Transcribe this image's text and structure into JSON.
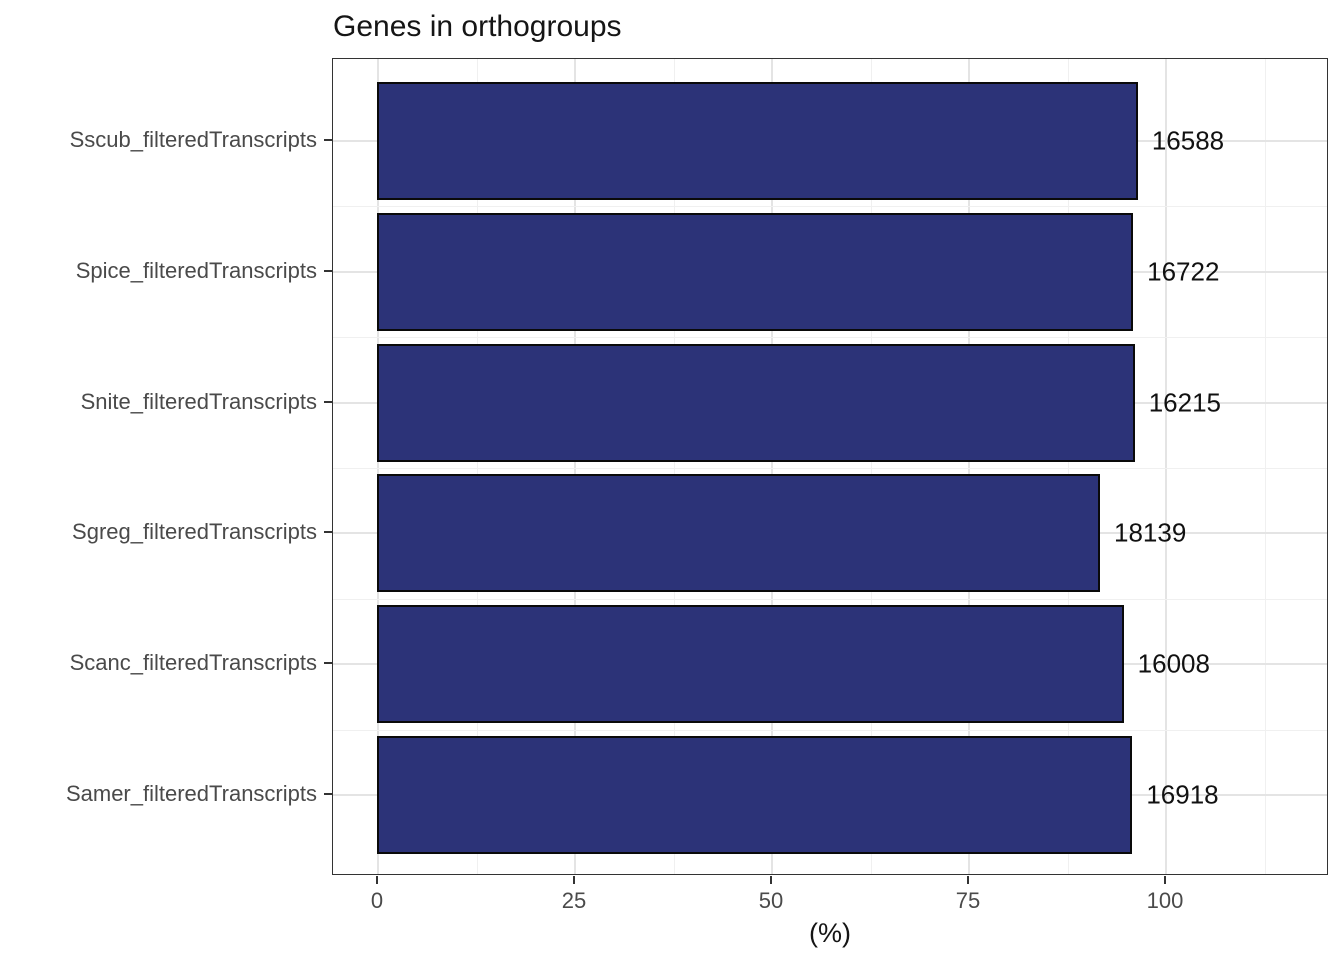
{
  "title": "Genes in orthogroups",
  "chart_data": {
    "type": "bar",
    "orientation": "horizontal",
    "title": "Genes in orthogroups",
    "xlabel": "(%)",
    "ylabel": "",
    "categories": [
      "Sscub_filteredTranscripts",
      "Spice_filteredTranscripts",
      "Snite_filteredTranscripts",
      "Sgreg_filteredTranscripts",
      "Scanc_filteredTranscripts",
      "Samer_filteredTranscripts"
    ],
    "values_percent": [
      96.3,
      95.7,
      95.9,
      91.5,
      94.5,
      95.6
    ],
    "bar_labels": [
      "16588",
      "16722",
      "16215",
      "18139",
      "16008",
      "16918"
    ],
    "x_ticks": [
      0,
      25,
      50,
      75,
      100
    ],
    "x_minor_ticks": [
      12.5,
      37.5,
      62.5,
      87.5,
      112.5
    ],
    "xlim": [
      -5.7,
      120.7
    ],
    "grid": "major and minor, light gray on white",
    "legend": "none",
    "bar_fill_color": "#2c3378",
    "bar_border_color": "#0a0a0a",
    "axis_text_color": "#4a4a4a",
    "title_color": "#151515"
  }
}
